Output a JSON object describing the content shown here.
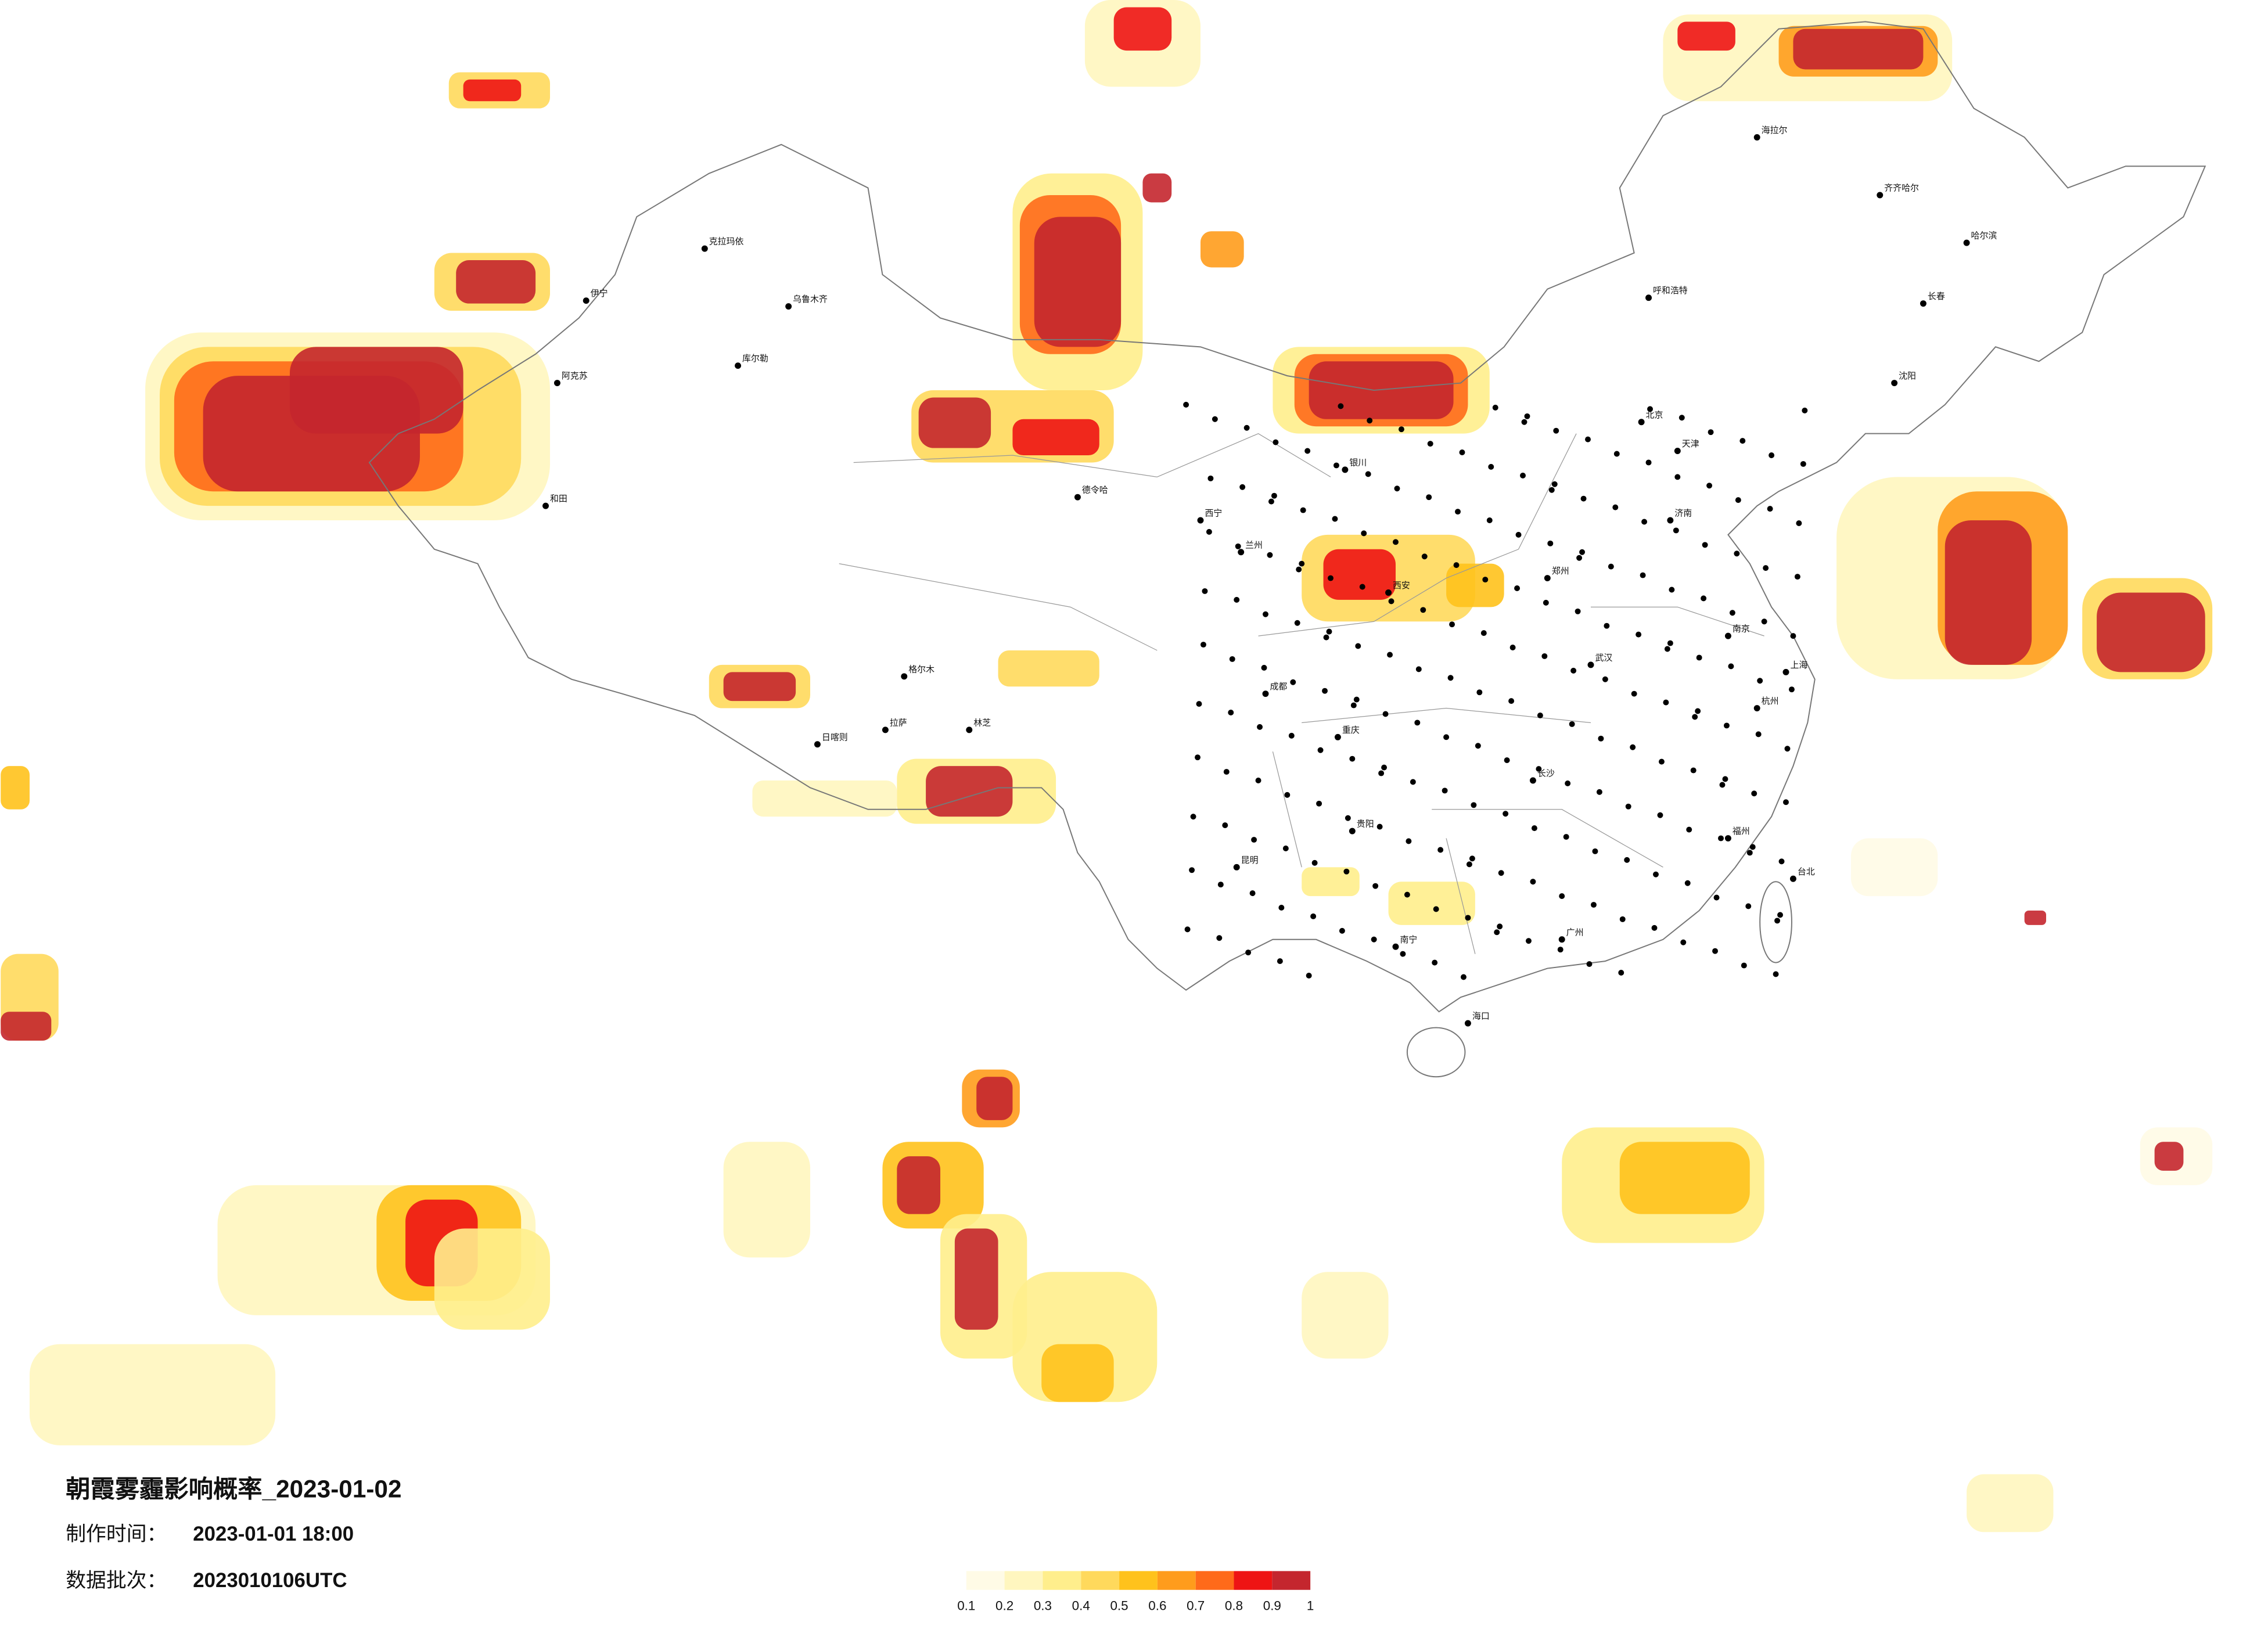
{
  "header": {
    "title": "朝霞雾霾影响概率_2023-01-02",
    "made_label": "制作时间：",
    "made_value": "2023-01-01 18:00",
    "batch_label": "数据批次：",
    "batch_value": "2023010106UTC"
  },
  "legend": {
    "ticks": [
      "0.1",
      "0.2",
      "0.3",
      "0.4",
      "0.5",
      "0.6",
      "0.7",
      "0.8",
      "0.9",
      "1"
    ],
    "colors": [
      "#fffbe6",
      "#fff6bf",
      "#ffee8c",
      "#ffd95c",
      "#ffc21c",
      "#ff9c1c",
      "#ff6a1a",
      "#ee1414",
      "#c4262e"
    ]
  },
  "cities": [
    "乌鲁木齐",
    "伊宁",
    "和田",
    "拉萨",
    "克拉玛依",
    "库尔勒",
    "阿克苏",
    "格尔木",
    "德令哈",
    "西宁",
    "兰州",
    "银川",
    "呼和浩特",
    "海拉尔",
    "齐齐哈尔",
    "哈尔滨",
    "长春",
    "沈阳",
    "北京",
    "天津",
    "济南",
    "郑州",
    "西安",
    "成都",
    "重庆",
    "武汉",
    "南京",
    "上海",
    "杭州",
    "长沙",
    "贵阳",
    "昆明",
    "南宁",
    "广州",
    "福州",
    "台北",
    "海口",
    "林芝",
    "日喀则"
  ]
}
